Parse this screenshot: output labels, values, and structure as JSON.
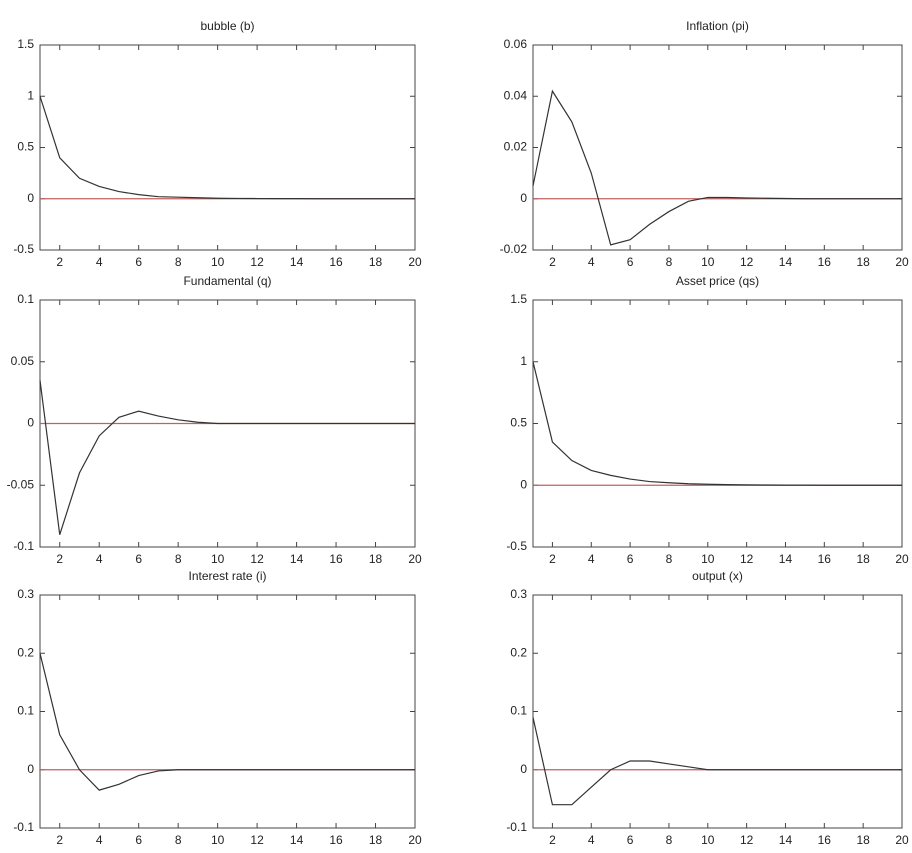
{
  "chart_data": [
    {
      "type": "line",
      "title": "bubble (b)",
      "x": [
        1,
        2,
        3,
        4,
        5,
        6,
        7,
        8,
        9,
        10,
        11,
        12,
        13,
        14,
        15,
        16,
        17,
        18,
        19,
        20
      ],
      "values": [
        1,
        0.4,
        0.2,
        0.12,
        0.07,
        0.04,
        0.02,
        0.015,
        0.01,
        0.005,
        0.003,
        0.002,
        0.001,
        0.001,
        0,
        0,
        0,
        0,
        0,
        0
      ],
      "color": "#333333",
      "hline": 0,
      "hline_color": "#c06060",
      "xlim": [
        1,
        20
      ],
      "xticks": [
        2,
        4,
        6,
        8,
        10,
        12,
        14,
        16,
        18,
        20
      ],
      "ylim": [
        -0.5,
        1.5
      ],
      "yticks": [
        -0.5,
        0,
        0.5,
        1,
        1.5
      ]
    },
    {
      "type": "line",
      "title": "Inflation (pi)",
      "x": [
        1,
        2,
        3,
        4,
        5,
        6,
        7,
        8,
        9,
        10,
        11,
        12,
        13,
        14,
        15,
        16,
        17,
        18,
        19,
        20
      ],
      "values": [
        0.005,
        0.042,
        0.03,
        0.01,
        -0.018,
        -0.016,
        -0.01,
        -0.005,
        -0.001,
        0.0005,
        0.0005,
        0.0003,
        0.0002,
        0.0001,
        0,
        0,
        0,
        0,
        0,
        0
      ],
      "color": "#333333",
      "hline": 0,
      "hline_color": "#c06060",
      "xlim": [
        1,
        20
      ],
      "xticks": [
        2,
        4,
        6,
        8,
        10,
        12,
        14,
        16,
        18,
        20
      ],
      "ylim": [
        -0.02,
        0.06
      ],
      "yticks": [
        -0.02,
        0,
        0.02,
        0.04,
        0.06
      ]
    },
    {
      "type": "line",
      "title": "Fundamental (q)",
      "x": [
        1,
        2,
        3,
        4,
        5,
        6,
        7,
        8,
        9,
        10,
        11,
        12,
        13,
        14,
        15,
        16,
        17,
        18,
        19,
        20
      ],
      "values": [
        0.035,
        -0.09,
        -0.04,
        -0.01,
        0.005,
        0.01,
        0.006,
        0.003,
        0.001,
        0,
        0,
        0,
        0,
        0,
        0,
        0,
        0,
        0,
        0,
        0
      ],
      "color": "#333333",
      "hline": 0,
      "hline_color": "#c06060",
      "xlim": [
        1,
        20
      ],
      "xticks": [
        2,
        4,
        6,
        8,
        10,
        12,
        14,
        16,
        18,
        20
      ],
      "ylim": [
        -0.1,
        0.1
      ],
      "yticks": [
        -0.1,
        -0.05,
        0,
        0.05,
        0.1
      ]
    },
    {
      "type": "line",
      "title": "Asset price (qs)",
      "x": [
        1,
        2,
        3,
        4,
        5,
        6,
        7,
        8,
        9,
        10,
        11,
        12,
        13,
        14,
        15,
        16,
        17,
        18,
        19,
        20
      ],
      "values": [
        1,
        0.35,
        0.2,
        0.12,
        0.08,
        0.05,
        0.03,
        0.02,
        0.012,
        0.008,
        0.005,
        0.003,
        0.002,
        0.001,
        0.001,
        0,
        0,
        0,
        0,
        0
      ],
      "color": "#333333",
      "hline": 0,
      "hline_color": "#c06060",
      "xlim": [
        1,
        20
      ],
      "xticks": [
        2,
        4,
        6,
        8,
        10,
        12,
        14,
        16,
        18,
        20
      ],
      "ylim": [
        -0.5,
        1.5
      ],
      "yticks": [
        -0.5,
        0,
        0.5,
        1,
        1.5
      ]
    },
    {
      "type": "line",
      "title": "Interest rate (i)",
      "x": [
        1,
        2,
        3,
        4,
        5,
        6,
        7,
        8,
        9,
        10,
        11,
        12,
        13,
        14,
        15,
        16,
        17,
        18,
        19,
        20
      ],
      "values": [
        0.2,
        0.06,
        0,
        -0.035,
        -0.025,
        -0.01,
        -0.002,
        0,
        0,
        0,
        0,
        0,
        0,
        0,
        0,
        0,
        0,
        0,
        0,
        0
      ],
      "color": "#333333",
      "hline": 0,
      "hline_color": "#c06060",
      "xlim": [
        1,
        20
      ],
      "xticks": [
        2,
        4,
        6,
        8,
        10,
        12,
        14,
        16,
        18,
        20
      ],
      "ylim": [
        -0.1,
        0.3
      ],
      "yticks": [
        -0.1,
        0,
        0.1,
        0.2,
        0.3
      ]
    },
    {
      "type": "line",
      "title": "output (x)",
      "x": [
        1,
        2,
        3,
        4,
        5,
        6,
        7,
        8,
        9,
        10,
        11,
        12,
        13,
        14,
        15,
        16,
        17,
        18,
        19,
        20
      ],
      "values": [
        0.09,
        -0.06,
        -0.06,
        -0.03,
        0,
        0.015,
        0.015,
        0.01,
        0.005,
        0,
        0,
        0,
        0,
        0,
        0,
        0,
        0,
        0,
        0,
        0
      ],
      "color": "#333333",
      "hline": 0,
      "hline_color": "#c06060",
      "xlim": [
        1,
        20
      ],
      "xticks": [
        2,
        4,
        6,
        8,
        10,
        12,
        14,
        16,
        18,
        20
      ],
      "ylim": [
        -0.1,
        0.3
      ],
      "yticks": [
        -0.1,
        0,
        0.1,
        0.2,
        0.3
      ]
    }
  ]
}
